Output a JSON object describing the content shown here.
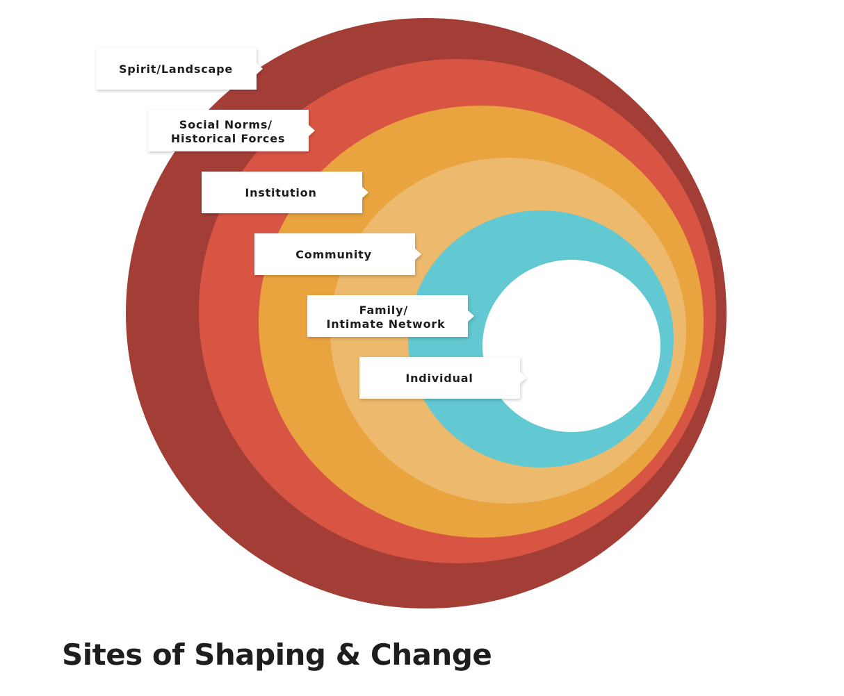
{
  "title": "Sites of Shaping & Change",
  "layers": [
    {
      "id": "spirit-landscape",
      "lines": [
        "Spirit/Landscape"
      ],
      "color": "#a33e37"
    },
    {
      "id": "social-norms",
      "lines": [
        "Social Norms/",
        "Historical Forces"
      ],
      "color": "#d95543"
    },
    {
      "id": "institution",
      "lines": [
        "Institution"
      ],
      "color": "#e9a43f"
    },
    {
      "id": "community",
      "lines": [
        "Community"
      ],
      "color": "#edb96c"
    },
    {
      "id": "family",
      "lines": [
        "Family/",
        "Intimate Network"
      ],
      "color": "#62c8d1"
    },
    {
      "id": "individual",
      "lines": [
        "Individual"
      ],
      "color": "#ffffff"
    }
  ]
}
